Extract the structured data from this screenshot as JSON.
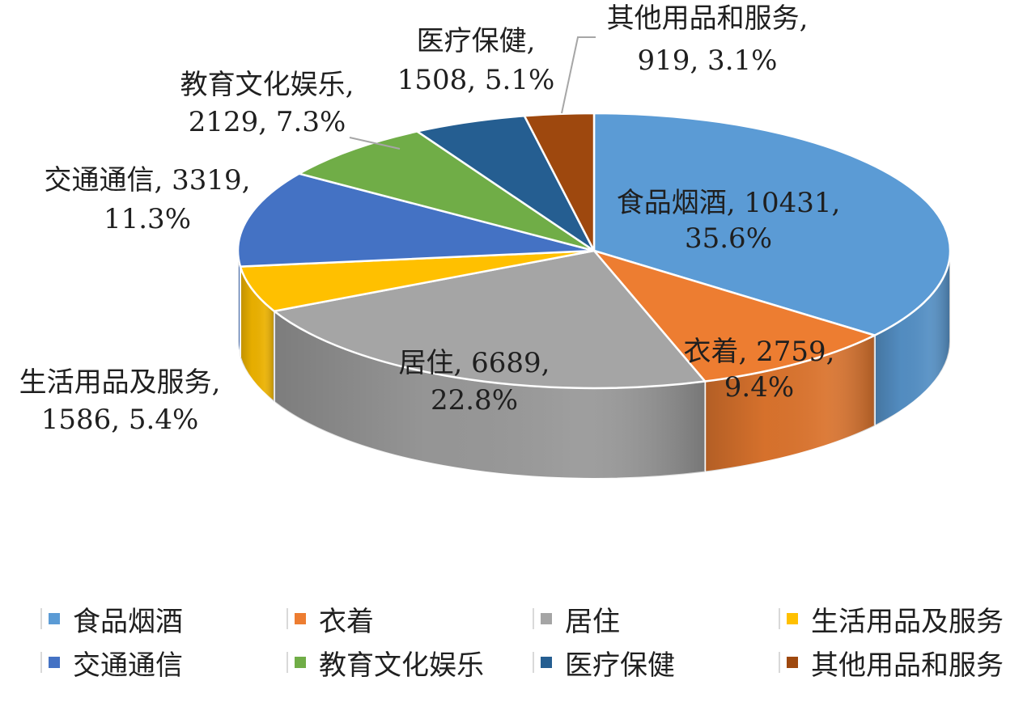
{
  "chart_data": {
    "type": "pie",
    "categories": [
      "食品烟酒",
      "衣着",
      "居住",
      "生活用品及服务",
      "交通通信",
      "教育文化娱乐",
      "医疗保健",
      "其他用品和服务"
    ],
    "values": [
      10431,
      2759,
      6689,
      1586,
      3319,
      2129,
      1508,
      919
    ],
    "percentages": [
      "35.6%",
      "9.4%",
      "22.8%",
      "5.4%",
      "11.3%",
      "7.3%",
      "5.1%",
      "3.1%"
    ],
    "colors": [
      "#5b9bd5",
      "#ed7d31",
      "#a5a5a5",
      "#ffc000",
      "#4472c4",
      "#70ad47",
      "#255e91",
      "#9e480e"
    ],
    "data_labels": [
      [
        "食品烟酒, 10431,",
        "35.6%"
      ],
      [
        "衣着, 2759,",
        "9.4%"
      ],
      [
        "居住, 6689,",
        "22.8%"
      ],
      [
        "生活用品及服务,",
        "1586, 5.4%"
      ],
      [
        "交通通信, 3319,",
        "11.3%"
      ],
      [
        "教育文化娱乐,",
        "2129, 7.3%"
      ],
      [
        "医疗保健,",
        "1508, 5.1%"
      ],
      [
        "其他用品和服务,",
        "919, 3.1%"
      ]
    ],
    "legend_position": "bottom",
    "style": "3d"
  }
}
